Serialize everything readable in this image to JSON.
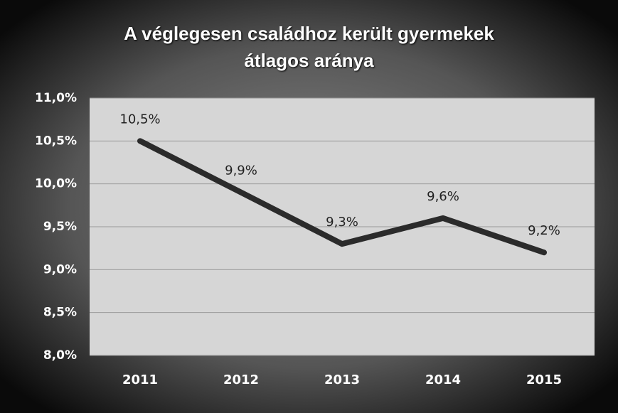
{
  "chart_data": {
    "type": "line",
    "title": "A véglegesen családhoz került gyermekek átlagos aránya",
    "categories": [
      "2011",
      "2012",
      "2013",
      "2014",
      "2015"
    ],
    "series": [
      {
        "name": "arány",
        "color": "#2b2b2b",
        "values": [
          10.5,
          9.9,
          9.3,
          9.6,
          9.2
        ],
        "value_labels": [
          "10,5%",
          "9,9%",
          "9,3%",
          "9,6%",
          "9,2%"
        ]
      }
    ],
    "ylim": [
      8,
      11
    ],
    "yticks": [
      {
        "value": 8,
        "label": "8,0%"
      },
      {
        "value": 8.5,
        "label": "8,5%"
      },
      {
        "value": 9,
        "label": "9,0%"
      },
      {
        "value": 9.5,
        "label": "9,5%"
      },
      {
        "value": 10,
        "label": "10,0%"
      },
      {
        "value": 10.5,
        "label": "10,5%"
      },
      {
        "value": 11,
        "label": "11,0%"
      }
    ],
    "grid": true
  }
}
